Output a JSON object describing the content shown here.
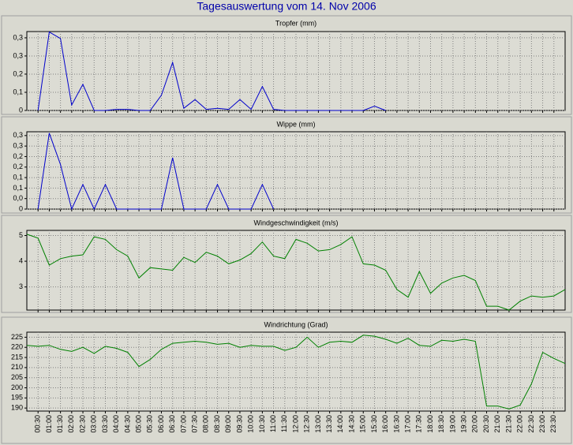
{
  "title": "Tagesauswertung vom 14. Nov 2006",
  "chart_data": [
    {
      "type": "line",
      "title": "Tropfer (mm)",
      "color": "#0000cc",
      "grid": true,
      "ylim": [
        0,
        0.362
      ],
      "yticks": [
        0,
        {
          "value": 0.0833,
          "label": "0,1"
        },
        {
          "value": 0.1667,
          "label": "0,2"
        },
        {
          "value": 0.25,
          "label": "0,3"
        },
        {
          "value": 0.3333,
          "label": "0,3"
        }
      ],
      "values": [
        null,
        0,
        0.36,
        0.33,
        0.025,
        0.12,
        0,
        0,
        0.005,
        0.005,
        0,
        0,
        0.07,
        0.22,
        0.01,
        0.05,
        0.005,
        0.01,
        0.005,
        0.05,
        0.005,
        0.11,
        0.005,
        0,
        0,
        0,
        0,
        0,
        0,
        0,
        0,
        0.02,
        0,
        null,
        null,
        null,
        null,
        null,
        null,
        null,
        null,
        null,
        null,
        null,
        null,
        null,
        null,
        null,
        null
      ]
    },
    {
      "type": "line",
      "title": "Wippe (mm)",
      "color": "#0000cc",
      "grid": true,
      "ylim": [
        0,
        0.346
      ],
      "yticks": [
        0,
        {
          "value": 0.047,
          "label": "0,0"
        },
        {
          "value": 0.094,
          "label": "0,1"
        },
        {
          "value": 0.141,
          "label": "0,1"
        },
        {
          "value": 0.188,
          "label": "0,2"
        },
        {
          "value": 0.235,
          "label": "0,2"
        },
        {
          "value": 0.282,
          "label": "0,3"
        },
        {
          "value": 0.329,
          "label": "0,3"
        }
      ],
      "values": [
        null,
        0,
        0.34,
        0.2,
        0,
        0.11,
        0,
        0.11,
        0,
        0,
        0,
        0,
        0,
        0.23,
        0,
        0,
        0,
        0.11,
        0,
        0,
        0,
        0.11,
        0,
        null,
        null,
        null,
        null,
        null,
        null,
        null,
        null,
        null,
        null,
        null,
        null,
        null,
        null,
        null,
        null,
        null,
        null,
        null,
        null,
        null,
        null,
        null,
        null,
        null,
        null
      ]
    },
    {
      "type": "line",
      "title": "Windgeschwindigkeit (m/s)",
      "color": "#008000",
      "grid": true,
      "ylim": [
        2.1,
        5.2
      ],
      "yticks": [
        3,
        4,
        5
      ],
      "values": [
        5.05,
        4.9,
        3.85,
        4.1,
        4.2,
        4.25,
        4.95,
        4.85,
        4.45,
        4.2,
        3.35,
        3.75,
        3.7,
        3.65,
        4.15,
        3.95,
        4.35,
        4.2,
        3.9,
        4.05,
        4.3,
        4.75,
        4.2,
        4.1,
        4.85,
        4.7,
        4.4,
        4.45,
        4.65,
        4.95,
        3.9,
        3.85,
        3.65,
        2.9,
        2.6,
        3.6,
        2.75,
        3.15,
        3.35,
        3.45,
        3.25,
        2.25,
        2.25,
        2.1,
        2.45,
        2.65,
        2.6,
        2.65,
        2.9
      ]
    },
    {
      "type": "line",
      "title": "Windrichtung (Grad)",
      "color": "#008000",
      "grid": true,
      "ylim": [
        188.5,
        227.5
      ],
      "yticks": [
        190,
        195,
        200,
        205,
        210,
        215,
        220,
        225
      ],
      "categories": [
        null,
        "00:30",
        "01:00",
        "01:30",
        "02:00",
        "02:30",
        "03:00",
        "03:30",
        "04:00",
        "04:30",
        "05:00",
        "05:30",
        "06:00",
        "06:30",
        "07:00",
        "07:30",
        "08:00",
        "08:30",
        "09:00",
        "09:30",
        "10:00",
        "10:30",
        "11:00",
        "11:30",
        "12:00",
        "12:30",
        "13:00",
        "13:30",
        "14:00",
        "14:30",
        "15:00",
        "15:30",
        "16:00",
        "16:30",
        "17:00",
        "17:30",
        "18:00",
        "18:30",
        "19:00",
        "19:30",
        "20:00",
        "20:30",
        "21:00",
        "21:30",
        "22:00",
        "22:30",
        "23:00",
        "23:30",
        null
      ],
      "values": [
        221,
        220.5,
        221,
        219,
        218,
        220,
        217,
        220.5,
        219.5,
        217.5,
        210.5,
        214,
        219,
        222,
        222.5,
        223,
        222.5,
        221.5,
        222,
        220,
        221,
        220.5,
        220.5,
        218.5,
        220,
        225,
        220,
        222.5,
        223,
        222.5,
        226,
        225.5,
        224,
        222,
        224.5,
        221,
        220.5,
        223.5,
        223,
        224,
        223,
        191,
        191,
        189.5,
        191.5,
        202,
        217.5,
        214.5,
        212
      ]
    }
  ]
}
